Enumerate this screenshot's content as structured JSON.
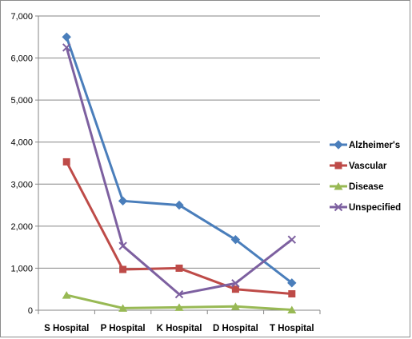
{
  "chart_data": {
    "type": "line",
    "title": "",
    "xlabel": "",
    "ylabel": "",
    "categories": [
      "S Hospital",
      "P Hospital",
      "K Hospital",
      "D Hospital",
      "T Hospital"
    ],
    "ylim": [
      0,
      7000
    ],
    "yticks": [
      0,
      1000,
      2000,
      3000,
      4000,
      5000,
      6000,
      7000
    ],
    "ytick_labels": [
      "0",
      "1,000",
      "2,000",
      "3,000",
      "4,000",
      "5,000",
      "6,000",
      "7,000"
    ],
    "grid": "horizontal",
    "legend_position": "right",
    "series": [
      {
        "name": "Alzheimer's",
        "values": [
          6500,
          2600,
          2500,
          1680,
          650
        ],
        "color": "#4a7ebb",
        "marker": "diamond"
      },
      {
        "name": "Vascular",
        "values": [
          3530,
          970,
          1000,
          500,
          390
        ],
        "color": "#be4b48",
        "marker": "square"
      },
      {
        "name": "Disease",
        "values": [
          360,
          50,
          70,
          90,
          10
        ],
        "color": "#98b954",
        "marker": "triangle"
      },
      {
        "name": "Unspecified",
        "values": [
          6250,
          1530,
          380,
          640,
          1680
        ],
        "color": "#7d60a0",
        "marker": "x"
      }
    ]
  }
}
